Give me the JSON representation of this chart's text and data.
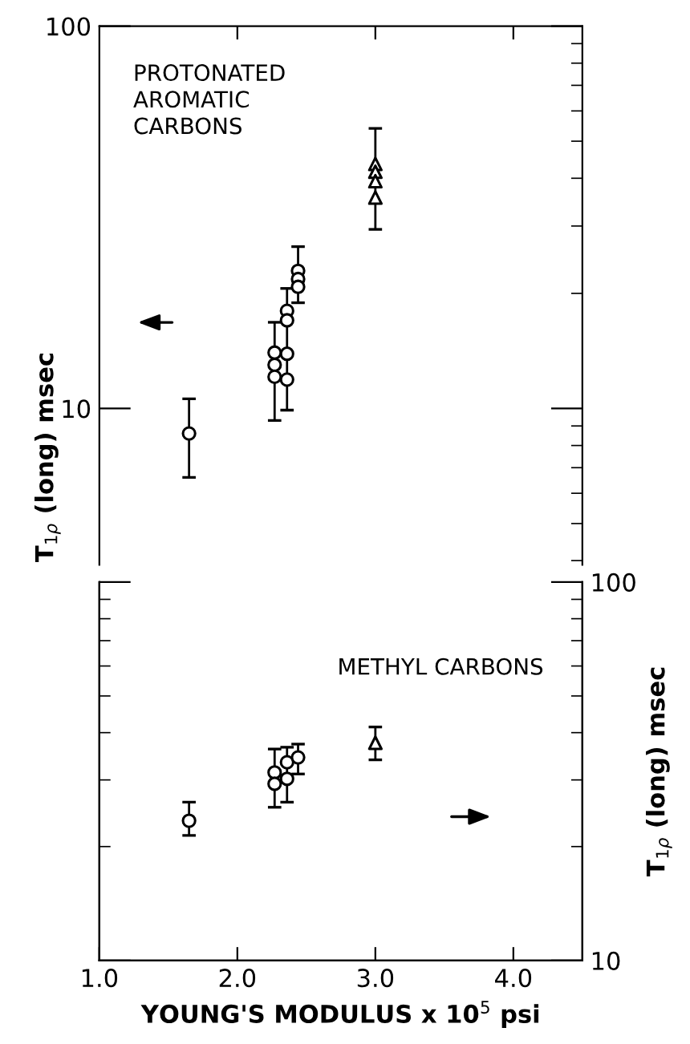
{
  "chart_data": [
    {
      "type": "scatter",
      "ylabel": "T$_{1ρ}$ (long) msec",
      "annotations": [
        "PROTONATED\nAROMATIC\nCARBONS"
      ],
      "log": "y",
      "xlim": [
        1.0,
        4.5
      ],
      "xticks": [
        {
          "value": 2.0,
          "label": null
        },
        {
          "value": 3.0,
          "label": null
        },
        {
          "value": 4.0,
          "label": null
        }
      ],
      "ylim": [
        3.9,
        100
      ],
      "yticks": [
        10,
        100
      ],
      "tick_labels": "y",
      "grid": false,
      "legend": false,
      "series": [
        {
          "marker": "circle",
          "color": "#000000",
          "x": [
            1.65,
            2.27,
            2.27,
            2.27,
            2.36,
            2.36,
            2.36,
            2.36,
            2.44,
            2.44,
            2.44
          ],
          "values": [
            8.6,
            14.0,
            13.0,
            12.1,
            18.0,
            17.0,
            13.9,
            11.9,
            22.9,
            21.8,
            20.8
          ],
          "errors": [
            [
              6.6,
              10.6
            ],
            null,
            [
              9.3,
              16.8
            ],
            null,
            [
              9.9,
              20.6
            ],
            null,
            null,
            null,
            [
              18.9,
              26.5
            ],
            null,
            null
          ]
        },
        {
          "marker": "triangle",
          "color": "#000000",
          "x": [
            3.0,
            3.0,
            3.0,
            3.0
          ],
          "values": [
            43.6,
            41.6,
            39.3,
            35.6
          ],
          "errors": [
            null,
            [
              29.4,
              54
            ],
            null,
            null
          ]
        }
      ]
    },
    {
      "type": "scatter",
      "xlabel": "YOUNG'S MODULUS x 10$^{5}$ psi",
      "y2label": "T$_{1ρ}$ (long) msec",
      "annotations": [
        "METHYL CARBONS"
      ],
      "log": "y2",
      "xlim": [
        1.0,
        4.5
      ],
      "xticks": [
        {
          "value": 1.0,
          "label": "1.0"
        },
        {
          "value": 2.0,
          "label": "2.0"
        },
        {
          "value": 3.0,
          "label": "3.0"
        },
        {
          "value": 4.0,
          "label": "4.0"
        }
      ],
      "y2lim": [
        10,
        100
      ],
      "y2ticks": [
        10,
        100
      ],
      "grid": false,
      "legend": false,
      "series": [
        {
          "marker": "circle",
          "color": "#000000",
          "axis": "y2",
          "x": [
            1.65,
            2.27,
            2.27,
            2.36,
            2.36,
            2.44
          ],
          "values": [
            23.4,
            31.4,
            29.3,
            33.4,
            30.2,
            34.4
          ],
          "errors": [
            [
              21.4,
              26.2
            ],
            [
              25.4,
              36.2
            ],
            null,
            [
              26.2,
              36.6
            ],
            null,
            [
              31.1,
              37.3
            ]
          ]
        },
        {
          "marker": "triangle",
          "color": "#000000",
          "axis": "y2",
          "x": [
            3.0
          ],
          "values": [
            37.6
          ],
          "errors": [
            [
              33.9,
              41.4
            ]
          ]
        }
      ]
    }
  ]
}
